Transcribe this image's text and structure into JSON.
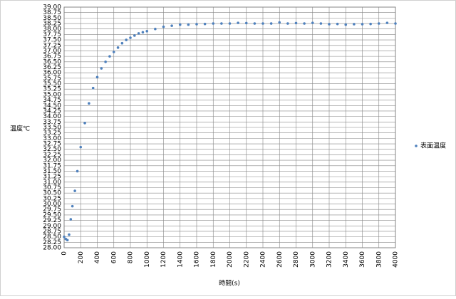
{
  "chart_data": {
    "type": "scatter",
    "y_label": "温度℃",
    "x_label": "時間(s)",
    "x": [
      0,
      20,
      40,
      60,
      80,
      100,
      130,
      160,
      200,
      250,
      300,
      350,
      400,
      450,
      500,
      550,
      600,
      650,
      700,
      750,
      800,
      850,
      900,
      950,
      1000,
      1100,
      1200,
      1300,
      1400,
      1500,
      1600,
      1700,
      1800,
      1900,
      2000,
      2100,
      2200,
      2300,
      2400,
      2500,
      2600,
      2700,
      2800,
      2900,
      3000,
      3100,
      3200,
      3300,
      3400,
      3500,
      3600,
      3700,
      3800,
      3900,
      4000
    ],
    "series": [
      {
        "name": "表面温度",
        "color": "#4f81bd",
        "values": [
          28.5,
          28.4,
          28.35,
          28.6,
          29.3,
          29.9,
          30.6,
          31.5,
          32.6,
          33.7,
          34.6,
          35.3,
          35.8,
          36.2,
          36.5,
          36.75,
          36.95,
          37.15,
          37.35,
          37.5,
          37.6,
          37.7,
          37.8,
          37.85,
          37.9,
          38.0,
          38.1,
          38.15,
          38.2,
          38.2,
          38.22,
          38.23,
          38.25,
          38.25,
          38.25,
          38.28,
          38.27,
          38.25,
          38.25,
          38.25,
          38.3,
          38.25,
          38.27,
          38.25,
          38.28,
          38.25,
          38.22,
          38.23,
          38.2,
          38.22,
          38.22,
          38.23,
          38.25,
          38.28,
          38.25
        ]
      }
    ],
    "xlim": [
      0,
      4000
    ],
    "xticks": [
      0,
      200,
      400,
      600,
      800,
      1000,
      1200,
      1400,
      1600,
      1800,
      2000,
      2200,
      2400,
      2600,
      2800,
      3000,
      3200,
      3400,
      3600,
      3800,
      4000
    ],
    "ylim": [
      28,
      39
    ],
    "yticks": [
      {
        "value": 28,
        "label": "28.00"
      },
      {
        "value": 28.25,
        "label": "28.25"
      },
      {
        "value": 28.5,
        "label": "28.50"
      },
      {
        "value": 28.75,
        "label": "28.75"
      },
      {
        "value": 29,
        "label": "29.00"
      },
      {
        "value": 29.25,
        "label": "29.25"
      },
      {
        "value": 29.5,
        "label": "29.50"
      },
      {
        "value": 29.75,
        "label": "29.75"
      },
      {
        "value": 30,
        "label": "30.00"
      },
      {
        "value": 30.25,
        "label": "30.25"
      },
      {
        "value": 30.5,
        "label": "30.50"
      },
      {
        "value": 30.75,
        "label": "30.75"
      },
      {
        "value": 31,
        "label": "31.00"
      },
      {
        "value": 31.25,
        "label": "31.25"
      },
      {
        "value": 31.5,
        "label": "31.50"
      },
      {
        "value": 31.75,
        "label": "31.75"
      },
      {
        "value": 32,
        "label": "32.00"
      },
      {
        "value": 32.25,
        "label": "32.25"
      },
      {
        "value": 32.5,
        "label": "32.50"
      },
      {
        "value": 32.75,
        "label": "32.75"
      },
      {
        "value": 33,
        "label": "33.00"
      },
      {
        "value": 33.25,
        "label": "33.25"
      },
      {
        "value": 33.5,
        "label": "33.50"
      },
      {
        "value": 33.75,
        "label": "33.75"
      },
      {
        "value": 34,
        "label": "34.00"
      },
      {
        "value": 34.25,
        "label": "34.25"
      },
      {
        "value": 34.5,
        "label": "34.50"
      },
      {
        "value": 34.75,
        "label": "34.75"
      },
      {
        "value": 35,
        "label": "35.00"
      },
      {
        "value": 35.25,
        "label": "35.25"
      },
      {
        "value": 35.5,
        "label": "35.50"
      },
      {
        "value": 35.75,
        "label": "35.75"
      },
      {
        "value": 36,
        "label": "36.00"
      },
      {
        "value": 36.25,
        "label": "36.25"
      },
      {
        "value": 36.5,
        "label": "36.50"
      },
      {
        "value": 36.75,
        "label": "36.75"
      },
      {
        "value": 37,
        "label": "37.00"
      },
      {
        "value": 37.25,
        "label": "37.25"
      },
      {
        "value": 37.5,
        "label": "37.50"
      },
      {
        "value": 37.75,
        "label": "37.75"
      },
      {
        "value": 38,
        "label": "38.00"
      },
      {
        "value": 38.25,
        "label": "38.25"
      },
      {
        "value": 38.5,
        "label": "38.50"
      },
      {
        "value": 38.75,
        "label": "38.75"
      },
      {
        "value": 39,
        "label": "39.00"
      }
    ],
    "grid": true,
    "legend": "right"
  }
}
